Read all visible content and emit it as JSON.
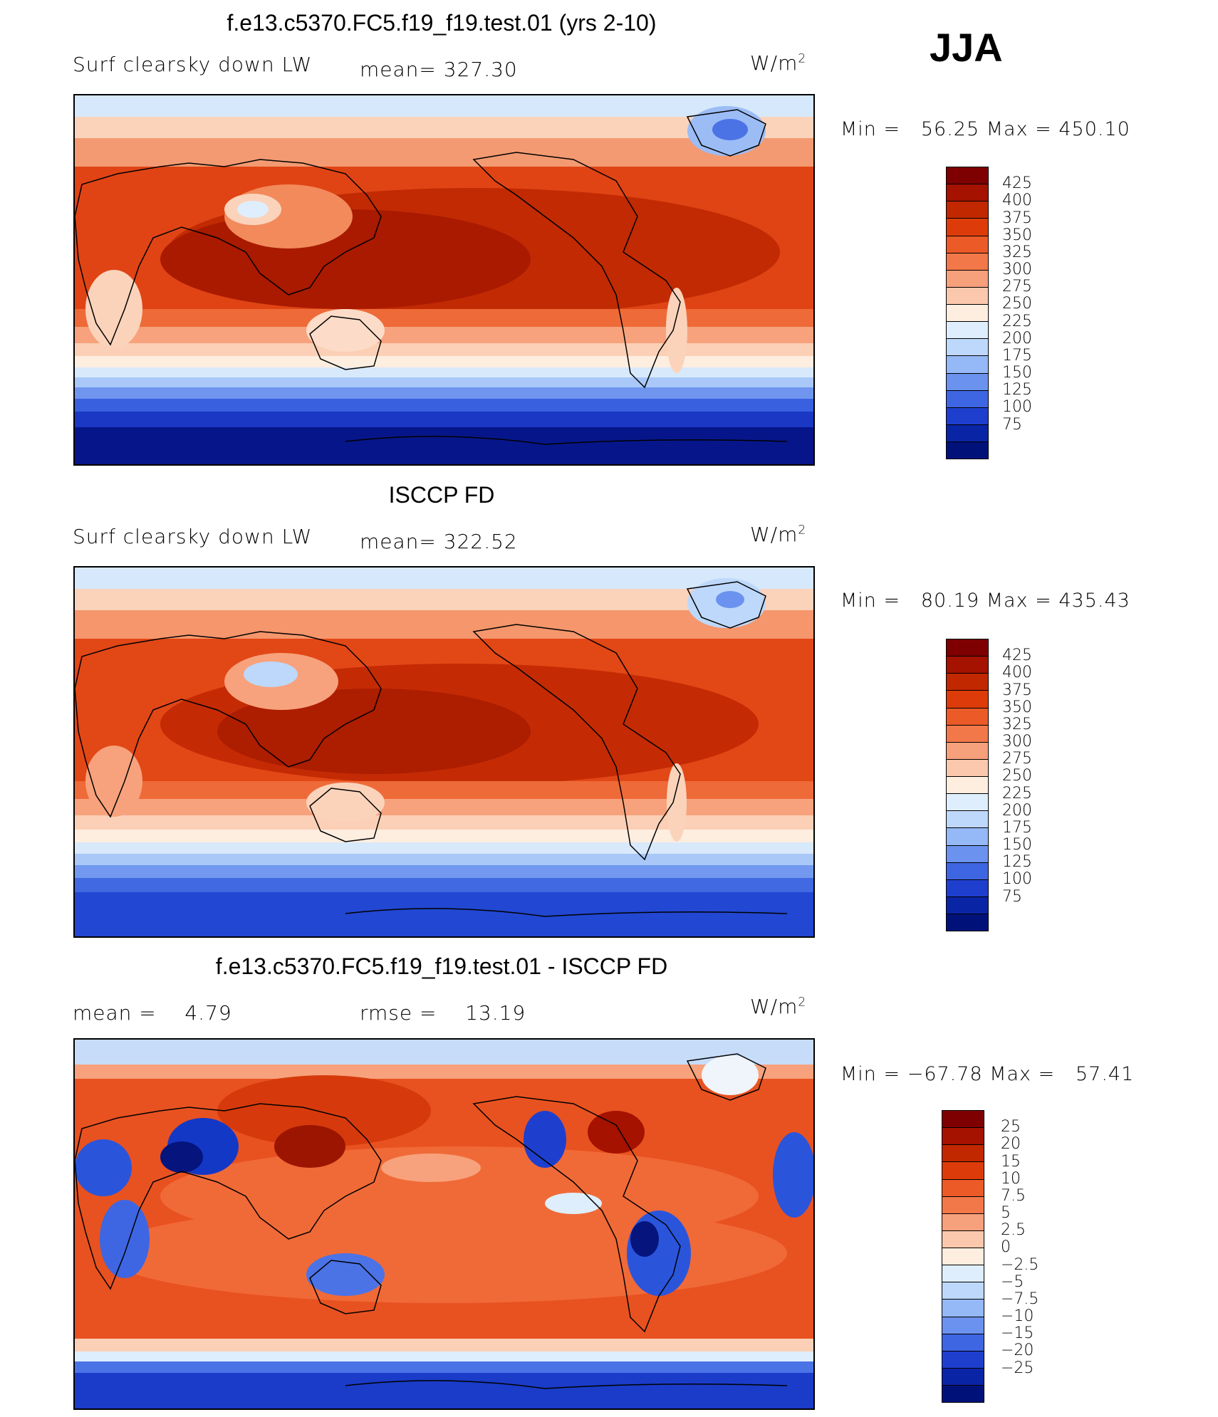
{
  "season": "JJA",
  "units": "W/m",
  "units_sup": "2",
  "panels": [
    {
      "title": "f.e13.c5370.FC5.f19_f19.test.01 (yrs 2-10)",
      "left_label": "Surf clearsky down LW",
      "mid_label": "mean= 327.30",
      "minmax": "Min =   56.25 Max = 450.10",
      "colorbar": {
        "labels": [
          "425",
          "400",
          "375",
          "350",
          "325",
          "300",
          "275",
          "250",
          "225",
          "200",
          "175",
          "150",
          "125",
          "100",
          "75"
        ],
        "colors": [
          "#7f0000",
          "#a51200",
          "#c22800",
          "#dd3c0a",
          "#ec5a28",
          "#f2784a",
          "#f7a07c",
          "#fbc8ad",
          "#fdeedf",
          "#deeefc",
          "#bdd8fb",
          "#95b8f6",
          "#6b92ee",
          "#3e66e2",
          "#1e3fce",
          "#0a24a6",
          "#00127a"
        ]
      }
    },
    {
      "title": "ISCCP FD",
      "left_label": "Surf clearsky down LW",
      "mid_label": "mean= 322.52",
      "minmax": "Min =   80.19 Max = 435.43",
      "colorbar": {
        "labels": [
          "425",
          "400",
          "375",
          "350",
          "325",
          "300",
          "275",
          "250",
          "225",
          "200",
          "175",
          "150",
          "125",
          "100",
          "75"
        ],
        "colors": [
          "#7f0000",
          "#a51200",
          "#c22800",
          "#dd3c0a",
          "#ec5a28",
          "#f2784a",
          "#f7a07c",
          "#fbc8ad",
          "#fdeedf",
          "#deeefc",
          "#bdd8fb",
          "#95b8f6",
          "#6b92ee",
          "#3e66e2",
          "#1e3fce",
          "#0a24a6",
          "#00127a"
        ]
      }
    },
    {
      "title": "f.e13.c5370.FC5.f19_f19.test.01 - ISCCP FD",
      "left_label": "mean =    4.79",
      "mid_label": "rmse =    13.19",
      "minmax": "Min = −67.78 Max =   57.41",
      "colorbar": {
        "labels": [
          "25",
          "20",
          "15",
          "10",
          "7.5",
          "5",
          "2.5",
          "0",
          "−2.5",
          "−5",
          "−7.5",
          "−10",
          "−15",
          "−20",
          "−25"
        ],
        "colors": [
          "#7f0000",
          "#a51200",
          "#c22800",
          "#dd3c0a",
          "#ec5a28",
          "#f2784a",
          "#f7a07c",
          "#fbc8ad",
          "#fdeedf",
          "#deeefc",
          "#bdd8fb",
          "#95b8f6",
          "#6b92ee",
          "#3e66e2",
          "#1e3fce",
          "#0a24a6",
          "#00127a"
        ]
      }
    }
  ],
  "colors": {
    "ocean_warm": "#c42a04",
    "ocean_mid": "#e54a18",
    "ocean_light": "#f6a583",
    "cool_light": "#d8e9fb",
    "cold_blue": "#2a55db",
    "very_cold": "#04137e"
  }
}
